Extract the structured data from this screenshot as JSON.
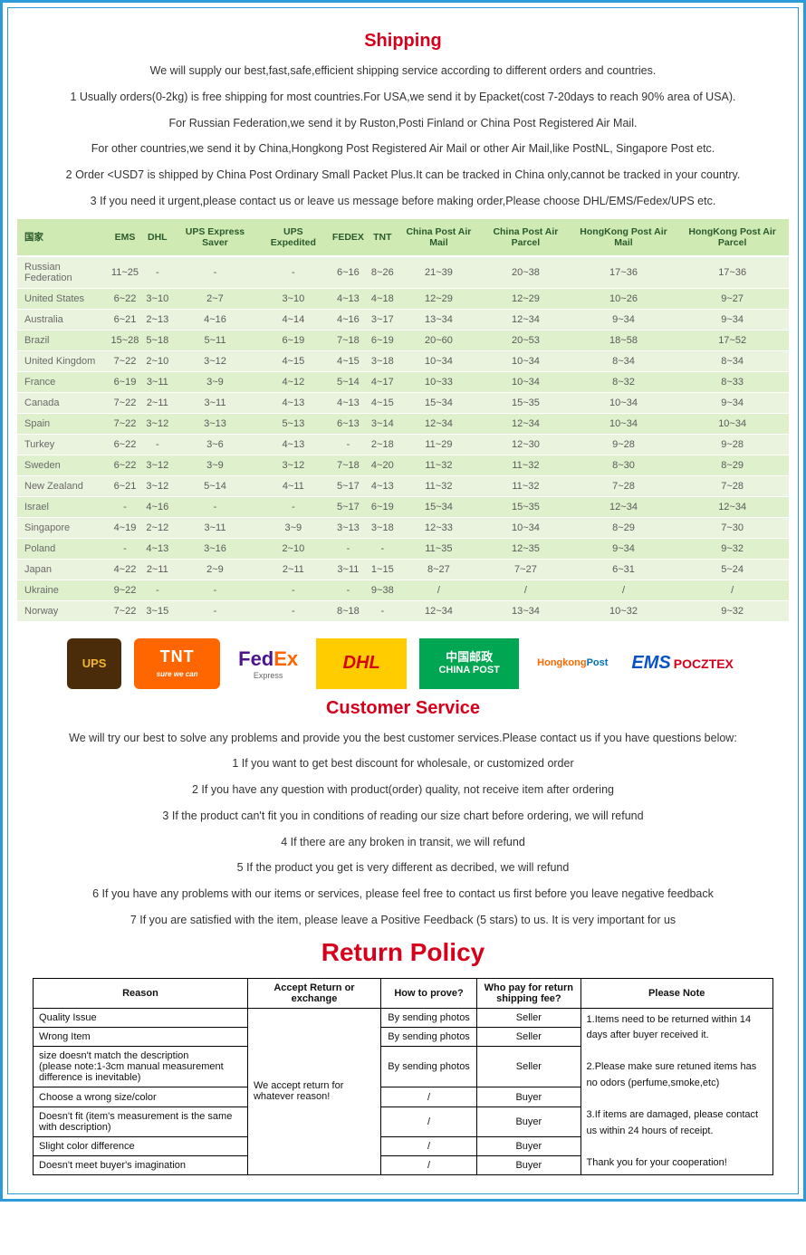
{
  "shipping": {
    "title": "Shipping",
    "intro": "We will supply our best,fast,safe,efficient shipping service according to different orders and countries.",
    "lines": [
      "1 Usually orders(0-2kg) is free shipping for most countries.For USA,we send it by Epacket(cost 7-20days to reach 90% area of USA).",
      "For Russian Federation,we send it by Ruston,Posti Finland or China Post Registered Air Mail.",
      "For other countries,we send it by China,Hongkong Post Registered Air Mail or other Air Mail,like PostNL, Singapore Post etc.",
      "2 Order <USD7 is shipped by China Post Ordinary Small Packet Plus.It can be tracked in China only,cannot be tracked in your country.",
      "3 If you need it urgent,please contact us or leave us message before making order,Please choose DHL/EMS/Fedex/UPS etc."
    ],
    "table": {
      "columns": [
        "国家",
        "EMS",
        "DHL",
        "UPS Express Saver",
        "UPS Expedited",
        "FEDEX",
        "TNT",
        "China Post Air Mail",
        "China Post Air Parcel",
        "HongKong Post Air Mail",
        "HongKong Post Air Parcel"
      ],
      "rows": [
        [
          "Russian Federation",
          "11~25",
          "-",
          "-",
          "-",
          "6~16",
          "8~26",
          "21~39",
          "20~38",
          "17~36",
          "17~36"
        ],
        [
          "United States",
          "6~22",
          "3~10",
          "2~7",
          "3~10",
          "4~13",
          "4~18",
          "12~29",
          "12~29",
          "10~26",
          "9~27"
        ],
        [
          "Australia",
          "6~21",
          "2~13",
          "4~16",
          "4~14",
          "4~16",
          "3~17",
          "13~34",
          "12~34",
          "9~34",
          "9~34"
        ],
        [
          "Brazil",
          "15~28",
          "5~18",
          "5~11",
          "6~19",
          "7~18",
          "6~19",
          "20~60",
          "20~53",
          "18~58",
          "17~52"
        ],
        [
          "United Kingdom",
          "7~22",
          "2~10",
          "3~12",
          "4~15",
          "4~15",
          "3~18",
          "10~34",
          "10~34",
          "8~34",
          "8~34"
        ],
        [
          "France",
          "6~19",
          "3~11",
          "3~9",
          "4~12",
          "5~14",
          "4~17",
          "10~33",
          "10~34",
          "8~32",
          "8~33"
        ],
        [
          "Canada",
          "7~22",
          "2~11",
          "3~11",
          "4~13",
          "4~13",
          "4~15",
          "15~34",
          "15~35",
          "10~34",
          "9~34"
        ],
        [
          "Spain",
          "7~22",
          "3~12",
          "3~13",
          "5~13",
          "6~13",
          "3~14",
          "12~34",
          "12~34",
          "10~34",
          "10~34"
        ],
        [
          "Turkey",
          "6~22",
          "-",
          "3~6",
          "4~13",
          "-",
          "2~18",
          "11~29",
          "12~30",
          "9~28",
          "9~28"
        ],
        [
          "Sweden",
          "6~22",
          "3~12",
          "3~9",
          "3~12",
          "7~18",
          "4~20",
          "11~32",
          "11~32",
          "8~30",
          "8~29"
        ],
        [
          "New Zealand",
          "6~21",
          "3~12",
          "5~14",
          "4~11",
          "5~17",
          "4~13",
          "11~32",
          "11~32",
          "7~28",
          "7~28"
        ],
        [
          "Israel",
          "-",
          "4~16",
          "-",
          "-",
          "5~17",
          "6~19",
          "15~34",
          "15~35",
          "12~34",
          "12~34"
        ],
        [
          "Singapore",
          "4~19",
          "2~12",
          "3~11",
          "3~9",
          "3~13",
          "3~18",
          "12~33",
          "10~34",
          "8~29",
          "7~30"
        ],
        [
          "Poland",
          "-",
          "4~13",
          "3~16",
          "2~10",
          "-",
          "-",
          "11~35",
          "12~35",
          "9~34",
          "9~32"
        ],
        [
          "Japan",
          "4~22",
          "2~11",
          "2~9",
          "2~11",
          "3~11",
          "1~15",
          "8~27",
          "7~27",
          "6~31",
          "5~24"
        ],
        [
          "Ukraine",
          "9~22",
          "-",
          "-",
          "-",
          "-",
          "9~38",
          "/",
          "/",
          "/",
          "/"
        ],
        [
          "Norway",
          "7~22",
          "3~15",
          "-",
          "-",
          "8~18",
          "-",
          "12~34",
          "13~34",
          "10~32",
          "9~32"
        ]
      ]
    }
  },
  "carriers": {
    "ups": "UPS",
    "tnt": "TNT",
    "tnt_sub": "sure we can",
    "fedex": "FedEx",
    "fedex_sub": "Express",
    "dhl": "DHL",
    "chinapost_cn": "中国邮政",
    "chinapost_en": "CHINA POST",
    "hkpost_top": "Hongkong",
    "hkpost_bot": "Post",
    "ems": "EMS",
    "ems_poc": "POCZTEX"
  },
  "customer_service": {
    "title": "Customer Service",
    "intro": "We will try our best to solve any problems and provide you the best customer services.Please contact us if you have questions below:",
    "lines": [
      "1 If you want to get best discount for wholesale, or customized order",
      "2 If you have any question with product(order) quality, not receive item after ordering",
      "3 If the product can't fit you in conditions of reading our size chart before ordering, we will refund",
      "4 If there are any broken in transit, we will refund",
      "5 If the product you get is very different as decribed, we will refund",
      "6 If you have any problems with our items or services, please feel free to contact us first before you leave negative feedback",
      "7 If you are satisfied with the item, please leave a Positive Feedback (5 stars) to us. It is very important for us"
    ]
  },
  "return_policy": {
    "title": "Return Policy",
    "columns": [
      "Reason",
      "Accept Return or exchange",
      "How to prove?",
      "Who pay for return shipping fee?",
      "Please Note"
    ],
    "accept_text": "We accept return for whatever reason!",
    "notes": [
      "1.Items need to be returned within 14 days after buyer received it.",
      "2.Please make sure retuned items has no odors (perfume,smoke,etc)",
      "3.If items are damaged, please contact us within 24 hours of receipt.",
      "Thank you for your cooperation!"
    ],
    "rows": [
      {
        "reason": "Quality Issue",
        "prove": "By sending photos",
        "who": "Seller"
      },
      {
        "reason": "Wrong Item",
        "prove": "By sending photos",
        "who": "Seller"
      },
      {
        "reason": "size doesn't match the description\n(please note:1-3cm manual measurement difference is inevitable)",
        "prove": "By sending photos",
        "who": "Seller"
      },
      {
        "reason": "Choose a wrong size/color",
        "prove": "/",
        "who": "Buyer"
      },
      {
        "reason": "Doesn't fit (item's measurement is the same with description)",
        "prove": "/",
        "who": "Buyer"
      },
      {
        "reason": "Slight color difference",
        "prove": "/",
        "who": "Buyer"
      },
      {
        "reason": "Doesn't meet buyer's imagination",
        "prove": "/",
        "who": "Buyer"
      }
    ]
  }
}
